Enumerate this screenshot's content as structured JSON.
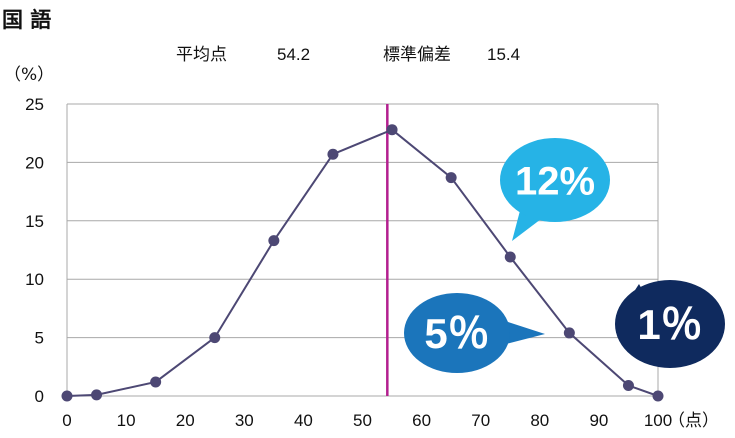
{
  "title": "国 語",
  "stats": {
    "mean_label": "平均点",
    "mean_value": "54.2",
    "sd_label": "標準偏差",
    "sd_value": "15.4"
  },
  "chart_data": {
    "type": "line",
    "y_unit_label": "（%）",
    "x_unit_label": "（点）",
    "x": [
      0,
      5,
      15,
      25,
      35,
      45,
      55,
      65,
      75,
      85,
      95,
      100
    ],
    "series": [
      {
        "values": [
          0,
          0.1,
          1.2,
          5.0,
          13.3,
          20.7,
          22.8,
          18.7,
          11.9,
          5.4,
          0.9,
          0
        ]
      }
    ],
    "xlim": [
      0,
      100
    ],
    "ylim": [
      0,
      25
    ],
    "x_ticks": [
      0,
      10,
      20,
      30,
      40,
      50,
      60,
      70,
      80,
      90,
      100
    ],
    "y_ticks": [
      0,
      5,
      10,
      15,
      20,
      25
    ],
    "mean_line_x": 54.2,
    "grid": "horizontal",
    "annotations": [
      {
        "text": "12%",
        "color": "#26b3e6"
      },
      {
        "text": "5％",
        "color": "#1b75bb"
      },
      {
        "text": "1％",
        "color": "#0f2a5e"
      }
    ],
    "colors": {
      "line": "#4d4874",
      "marker": "#4d4874",
      "mean_line": "#b31f8f",
      "grid": "#a8a8a8"
    }
  }
}
